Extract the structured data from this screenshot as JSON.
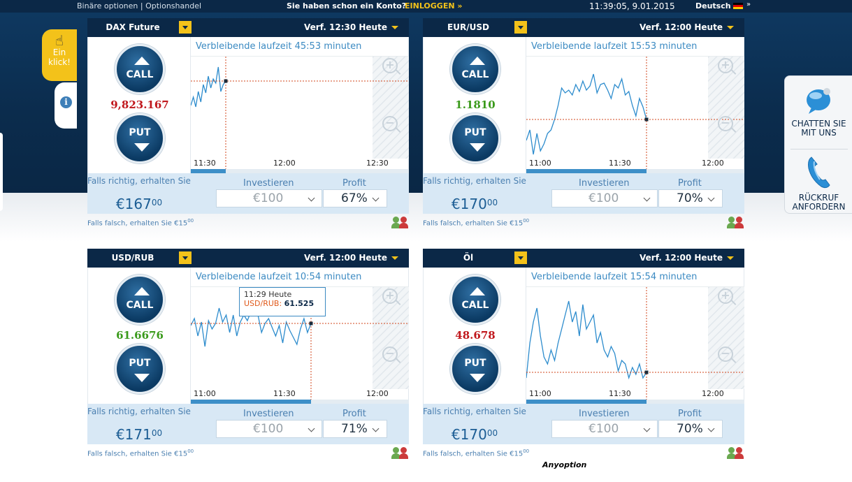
{
  "topbar": {
    "left": "Binäre optionen | Optionshandel",
    "question": "Sie haben schon ein Konto?",
    "login": "EINLOGGEN »",
    "clock": "11:39:05, 9.01.2015",
    "language": "Deutsch",
    "lang_menu": "»"
  },
  "einklick": "Ein klick!",
  "sidebar": {
    "chat": "CHATTEN SIE MIT UNS",
    "callback": "RÜCKRUF ANFORDERN"
  },
  "common": {
    "call": "CALL",
    "put": "PUT",
    "if_right": "Falls richtig, erhalten Sie",
    "invest_label": "Investieren",
    "profit_label": "Profit"
  },
  "panels": [
    {
      "asset": "DAX Future",
      "expiry": "Verf. 12:30 Heute",
      "remaining": "Verbleibende laufzeit 45:53 minuten",
      "price": "9,823.167",
      "price_color": "#c0171c",
      "times": [
        "11:30",
        "12:00",
        "12:30"
      ],
      "payout_main": "€167",
      "payout_cents": "00",
      "invest": "€100",
      "profit": "67%",
      "lose_main": "Falls falsch, erhalten Sie €15",
      "lose_cents": "00",
      "progress": 0.16,
      "series": [
        60,
        48,
        62,
        40,
        55,
        30,
        42,
        18,
        35,
        22,
        28,
        5,
        40,
        30,
        25
      ],
      "tooltip": null
    },
    {
      "asset": "EUR/USD",
      "expiry": "Verf. 12:00 Heute",
      "remaining": "Verbleibende laufzeit 15:53 minuten",
      "price": "1.1810",
      "price_color": "#3a9a1b",
      "times": [
        "11:00",
        "11:30",
        "12:00"
      ],
      "payout_main": "€170",
      "payout_cents": "00",
      "invest": "€100",
      "profit": "70%",
      "lose_main": "Falls falsch, erhalten Sie €15",
      "lose_cents": "00",
      "progress": 0.55,
      "series": [
        110,
        95,
        130,
        100,
        125,
        115,
        100,
        95,
        80,
        60,
        35,
        42,
        38,
        45,
        30,
        40,
        25,
        38,
        32,
        15,
        42,
        30,
        28,
        38,
        50,
        30,
        35,
        22,
        45,
        40,
        60,
        75,
        50,
        62,
        80
      ],
      "tooltip": null
    },
    {
      "asset": "USD/RUB",
      "expiry": "Verf. 12:00 Heute",
      "remaining": "Verbleibende laufzeit 10:54 minuten",
      "price": "61.6676",
      "price_color": "#3a9a1b",
      "times": [
        "11:00",
        "11:30",
        "12:00"
      ],
      "payout_main": "€171",
      "payout_cents": "00",
      "invest": "€100",
      "profit": "71%",
      "lose_main": "Falls falsch, erhalten Sie €15",
      "lose_cents": "00",
      "progress": 0.55,
      "series": [
        45,
        35,
        60,
        40,
        75,
        38,
        50,
        42,
        20,
        40,
        30,
        55,
        30,
        60,
        40,
        30,
        38,
        25,
        20,
        30,
        55,
        42,
        35,
        48,
        60,
        45,
        70,
        40,
        52,
        62,
        72,
        50,
        35,
        55,
        42
      ],
      "tooltip": {
        "time": "11:29 Heute",
        "symbol": "USD/RUB:",
        "value": "61.525"
      }
    },
    {
      "asset": "Öl",
      "expiry": "Verf. 12:00 Heute",
      "remaining": "Verbleibende laufzeit 15:54 minuten",
      "price": "48.678",
      "price_color": "#c0171c",
      "times": [
        "11:00",
        "11:30",
        "12:00"
      ],
      "payout_main": "€170",
      "payout_cents": "00",
      "invest": "€100",
      "profit": "70%",
      "lose_main": "Falls falsch, erhalten Sie €15",
      "lose_cents": "00",
      "progress": 0.55,
      "series": [
        120,
        70,
        40,
        20,
        60,
        90,
        100,
        80,
        95,
        70,
        50,
        30,
        10,
        40,
        25,
        60,
        15,
        50,
        40,
        30,
        70,
        55,
        80,
        90,
        75,
        85,
        110,
        95,
        100,
        120,
        105,
        115,
        100,
        120,
        112
      ],
      "tooltip": null
    }
  ],
  "brand": "Anyoption"
}
